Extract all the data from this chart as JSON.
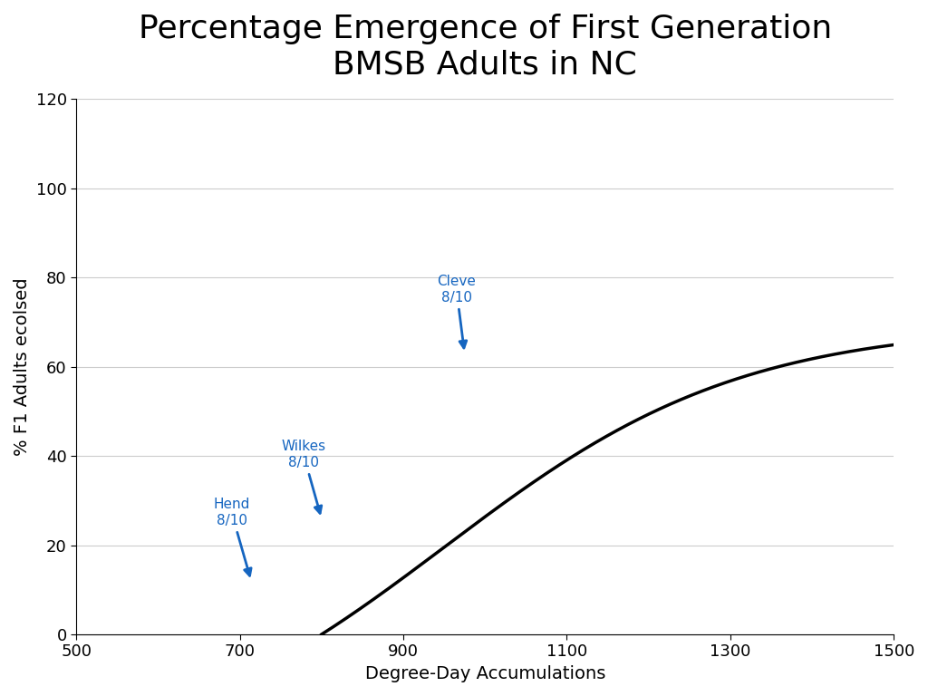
{
  "title": "Percentage Emergence of First Generation\nBMSB Adults in NC",
  "xlabel": "Degree-Day Accumulations",
  "ylabel": "% F1 Adults ecolsed",
  "xlim": [
    500,
    1500
  ],
  "ylim": [
    0,
    120
  ],
  "xticks": [
    500,
    700,
    900,
    1100,
    1300,
    1500
  ],
  "yticks": [
    0,
    20,
    40,
    60,
    80,
    100,
    120
  ],
  "curve_start_dd": 800,
  "curve_params": {
    "L": 100,
    "k": 0.0055,
    "x0": 950
  },
  "annotations": [
    {
      "label": "Hend\n8/10",
      "arrow_dd": 714,
      "arrow_pct": 12,
      "text_dd": 690,
      "text_pct": 24
    },
    {
      "label": "Wilkes\n8/10",
      "arrow_dd": 800,
      "arrow_pct": 26,
      "text_dd": 778,
      "text_pct": 37
    },
    {
      "label": "Cleve\n8/10",
      "arrow_dd": 975,
      "arrow_pct": 63,
      "text_dd": 965,
      "text_pct": 74
    }
  ],
  "arrow_color": "#1565C0",
  "line_color": "#000000",
  "line_width": 2.5,
  "title_fontsize": 26,
  "label_fontsize": 14,
  "tick_fontsize": 13,
  "annotation_fontsize": 11,
  "background_color": "#ffffff",
  "grid_color": "#cccccc"
}
